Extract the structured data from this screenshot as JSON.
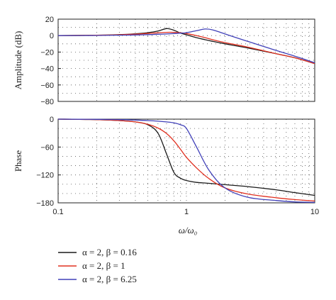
{
  "chart_data": [
    {
      "type": "line",
      "ylabel": "Amplitude (dB)",
      "xscale": "log",
      "xlim": [
        0.1,
        10
      ],
      "ylim": [
        -80,
        20
      ],
      "yticks": [
        "20",
        "0",
        "−20",
        "−40",
        "−60",
        "−80"
      ],
      "grid": true,
      "x": [
        0.1,
        0.2,
        0.3,
        0.4,
        0.5,
        0.6,
        0.7,
        0.8,
        0.9,
        1.0,
        1.2,
        1.4,
        1.6,
        2.0,
        3.0,
        5.0,
        7.0,
        10.0
      ],
      "series": [
        {
          "name": "α = 2, β = 0.16",
          "color": "#1a1a1a",
          "values": [
            0,
            0.5,
            1.2,
            2.2,
            3.5,
            5.5,
            8.5,
            6.5,
            3,
            1,
            -2.5,
            -5,
            -7,
            -10,
            -15,
            -22,
            -27,
            -34
          ]
        },
        {
          "name": "α = 2, β = 1",
          "color": "#e03020",
          "values": [
            0,
            0.4,
            1,
            1.8,
            2.6,
            3.4,
            4,
            4,
            3.5,
            2.5,
            0,
            -2.5,
            -5,
            -8.5,
            -14,
            -22,
            -27,
            -34
          ]
        },
        {
          "name": "α = 2, β = 6.25",
          "color": "#4040b8",
          "values": [
            0,
            0.2,
            0.5,
            0.8,
            1.2,
            1.6,
            2,
            2.5,
            3,
            3.5,
            6,
            8,
            7,
            2,
            -7,
            -18,
            -25,
            -33
          ]
        }
      ]
    },
    {
      "type": "line",
      "xlabel": "ω/ω₀",
      "ylabel": "Phase",
      "xscale": "log",
      "xlim": [
        0.1,
        10
      ],
      "ylim": [
        -180,
        0
      ],
      "xticks": [
        "0.1",
        "1",
        "10"
      ],
      "yticks": [
        "0",
        "−60",
        "−120",
        "−180"
      ],
      "grid": true,
      "x": [
        0.1,
        0.2,
        0.3,
        0.4,
        0.5,
        0.6,
        0.7,
        0.8,
        0.9,
        1.0,
        1.2,
        1.5,
        2.0,
        3.0,
        5.0,
        7.0,
        10.0
      ],
      "series": [
        {
          "name": "α = 2, β = 0.16",
          "color": "#1a1a1a",
          "values": [
            0,
            -1,
            -3,
            -6,
            -12,
            -30,
            -75,
            -115,
            -127,
            -132,
            -136,
            -138,
            -141,
            -145,
            -152,
            -158,
            -164
          ]
        },
        {
          "name": "α = 2, β = 1",
          "color": "#e03020",
          "values": [
            0,
            -1,
            -3,
            -6,
            -11,
            -19,
            -31,
            -47,
            -65,
            -82,
            -105,
            -128,
            -148,
            -161,
            -169,
            -173,
            -176
          ]
        },
        {
          "name": "α = 2, β = 6.25",
          "color": "#4040b8",
          "values": [
            0,
            -0.5,
            -1,
            -2,
            -3,
            -4.5,
            -6,
            -8,
            -12,
            -20,
            -60,
            -110,
            -148,
            -168,
            -175,
            -178,
            -179
          ]
        }
      ]
    }
  ],
  "legend": [
    {
      "label": "α = 2, β = 0.16",
      "color": "#1a1a1a"
    },
    {
      "label": "α = 2, β = 1",
      "color": "#e03020"
    },
    {
      "label": "α = 2, β = 6.25",
      "color": "#4040b8"
    }
  ]
}
